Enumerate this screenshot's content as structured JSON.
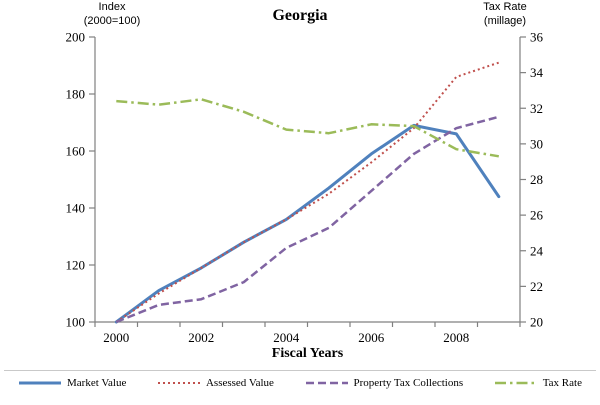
{
  "chart_data": {
    "type": "line",
    "title": "Georgia",
    "xlabel": "Fiscal Years",
    "grid": false,
    "legend_position": "bottom",
    "x": [
      2000,
      2001,
      2002,
      2003,
      2004,
      2005,
      2006,
      2007,
      2008,
      2009
    ],
    "x_tick_labels": [
      2000,
      2002,
      2004,
      2006,
      2008
    ],
    "left_axis": {
      "title_line1": "Index",
      "title_line2": "(2000=100)",
      "min": 100,
      "max": 200,
      "ticks": [
        100,
        120,
        140,
        160,
        180,
        200
      ]
    },
    "right_axis": {
      "title_line1": "Tax Rate",
      "title_line2": "(millage)",
      "min": 20,
      "max": 36,
      "ticks": [
        20,
        22,
        24,
        26,
        28,
        30,
        32,
        34,
        36
      ]
    },
    "series": [
      {
        "name": "Market Value",
        "axis": "left",
        "color": "#4F81BD",
        "dash": "",
        "width": 3,
        "values": [
          100,
          111,
          119,
          128,
          136,
          147,
          159,
          169,
          166,
          144
        ]
      },
      {
        "name": "Assessed Value",
        "axis": "left",
        "color": "#C0504D",
        "dash": "2 3",
        "width": 2,
        "values": [
          100,
          110,
          119,
          128,
          136,
          145,
          156,
          168,
          186,
          191
        ]
      },
      {
        "name": "Property Tax Collections",
        "axis": "left",
        "color": "#8064A2",
        "dash": "8 4",
        "width": 2.5,
        "values": [
          100,
          106,
          108,
          114,
          126,
          133,
          146,
          159,
          168,
          172
        ]
      },
      {
        "name": "Tax Rate",
        "axis": "right",
        "color": "#9BBB59",
        "dash": "11 4 2.5 4",
        "width": 2.5,
        "values": [
          32.4,
          32.2,
          32.5,
          31.8,
          30.8,
          30.6,
          31.1,
          31.0,
          29.7,
          29.3
        ]
      }
    ]
  }
}
